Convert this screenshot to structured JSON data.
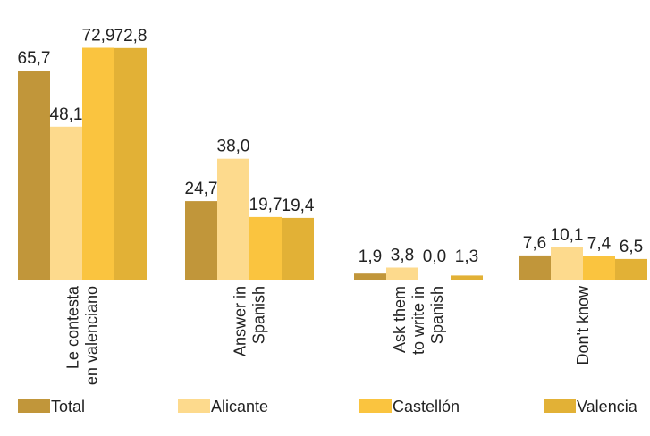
{
  "chart_data": {
    "type": "bar",
    "categories": [
      [
        "Le contesta",
        "en valenciano"
      ],
      [
        "Answer in",
        "Spanish"
      ],
      [
        "Ask them",
        "to write in",
        "Spanish"
      ],
      [
        "Don't know"
      ]
    ],
    "series": [
      {
        "name": "Total",
        "color": "#c1963a",
        "values": [
          65.7,
          24.7,
          1.9,
          7.6
        ],
        "labels": [
          "65,7",
          "24,7",
          "1,9",
          "7,6"
        ]
      },
      {
        "name": "Alicante",
        "color": "#fdda8d",
        "values": [
          48.1,
          38.0,
          3.8,
          10.1
        ],
        "labels": [
          "48,1",
          "38,0",
          "3,8",
          "10,1"
        ]
      },
      {
        "name": "Castellón",
        "color": "#fac43f",
        "values": [
          72.9,
          19.7,
          0.0,
          7.4
        ],
        "labels": [
          "72,9",
          "19,7",
          "0,0",
          "7,4"
        ]
      },
      {
        "name": "Valencia",
        "color": "#e2b136",
        "values": [
          72.8,
          19.4,
          1.3,
          6.5
        ],
        "labels": [
          "72,8",
          "19,4",
          "1,3",
          "6,5"
        ]
      }
    ],
    "ylim": [
      0,
      80
    ],
    "grid": false,
    "legend_position": "bottom"
  }
}
